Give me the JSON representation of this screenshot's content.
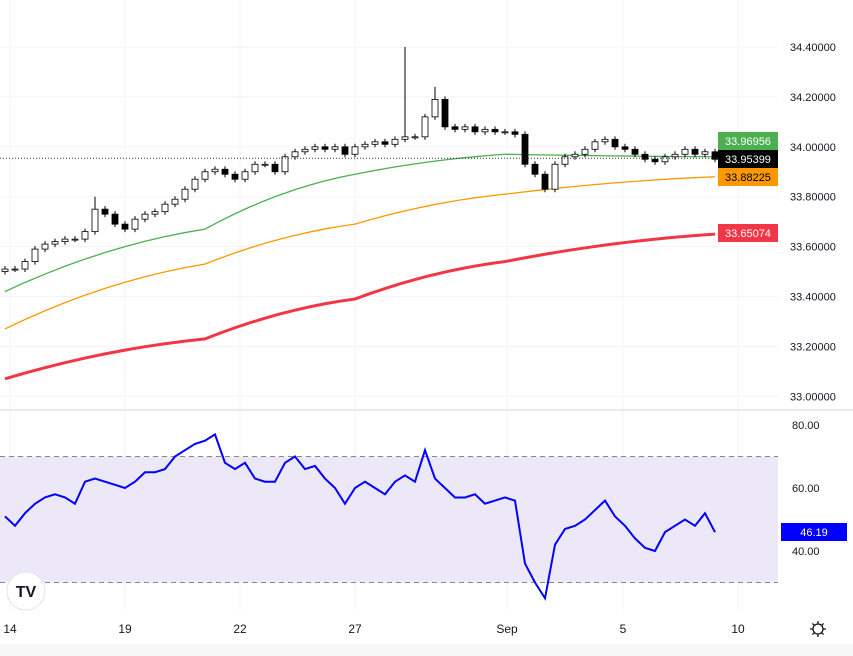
{
  "chart_data": [
    {
      "type": "candlestick",
      "yaxis_ticks": [
        "34.40000",
        "34.20000",
        "34.00000",
        "33.80000",
        "33.60000",
        "33.40000",
        "33.20000",
        "33.00000"
      ],
      "ylim": [
        32.98,
        34.46
      ],
      "xaxis_ticks": [
        "14",
        "19",
        "22",
        "27",
        "Sep",
        "5",
        "10"
      ],
      "closes": [
        33.51,
        33.51,
        33.54,
        33.59,
        33.61,
        33.62,
        33.63,
        33.63,
        33.66,
        33.75,
        33.73,
        33.69,
        33.67,
        33.71,
        33.73,
        33.74,
        33.77,
        33.79,
        33.83,
        33.87,
        33.9,
        33.91,
        33.89,
        33.87,
        33.9,
        33.93,
        33.93,
        33.9,
        33.96,
        33.98,
        33.99,
        34.0,
        33.99,
        34.0,
        33.97,
        34.0,
        34.01,
        34.02,
        34.01,
        34.03,
        34.04,
        34.04,
        34.12,
        34.19,
        34.08,
        34.07,
        34.08,
        34.06,
        34.07,
        34.06,
        34.06,
        34.05,
        33.93,
        33.89,
        33.83,
        33.93,
        33.96,
        33.97,
        33.99,
        34.02,
        34.03,
        34.0,
        33.99,
        33.97,
        33.95,
        33.94,
        33.96,
        33.97,
        33.99,
        33.97,
        33.98,
        33.95
      ],
      "highs_override": {
        "40": 34.4,
        "43": 34.24,
        "9": 33.8
      },
      "moving_averages": [
        {
          "color": "#4caf50",
          "points": [
            [
              0,
              33.42
            ],
            [
              20,
              33.67
            ],
            [
              35,
              33.89
            ],
            [
              50,
              33.97
            ],
            [
              71,
              33.96
            ]
          ],
          "last_label": "33.96956"
        },
        {
          "color": "#ff9800",
          "points": [
            [
              0,
              33.27
            ],
            [
              20,
              33.53
            ],
            [
              35,
              33.69
            ],
            [
              50,
              33.81
            ],
            [
              71,
              33.88
            ]
          ],
          "last_label": "33.88225"
        },
        {
          "color": "#f23645",
          "points": [
            [
              0,
              33.07
            ],
            [
              20,
              33.23
            ],
            [
              35,
              33.39
            ],
            [
              50,
              33.54
            ],
            [
              71,
              33.65
            ]
          ],
          "last_label": "33.65074"
        }
      ],
      "last_price_label": "33.95399",
      "colors": {
        "up": "#ffffff",
        "down": "#000000",
        "outline": "#000000"
      }
    },
    {
      "type": "line",
      "yaxis_ticks": [
        "80.00",
        "60.00",
        "40.00"
      ],
      "ylim": [
        20,
        84
      ],
      "band": [
        30,
        70
      ],
      "values": [
        51,
        48,
        52,
        55,
        57,
        58,
        57,
        55,
        62,
        63,
        62,
        61,
        60,
        62,
        65,
        65,
        66,
        70,
        72,
        74,
        75,
        77,
        68,
        66,
        68,
        63,
        62,
        62,
        68,
        70,
        66,
        67,
        63,
        60,
        55,
        60,
        62,
        60,
        58,
        62,
        64,
        62,
        72,
        63,
        60,
        57,
        57,
        58,
        55,
        56,
        57,
        56,
        36,
        30,
        25,
        42,
        47,
        48,
        50,
        53,
        56,
        51,
        48,
        44,
        41,
        40,
        46,
        48,
        50,
        48,
        52,
        46
      ],
      "last_label": "46.19",
      "color": "#0000ff"
    }
  ]
}
